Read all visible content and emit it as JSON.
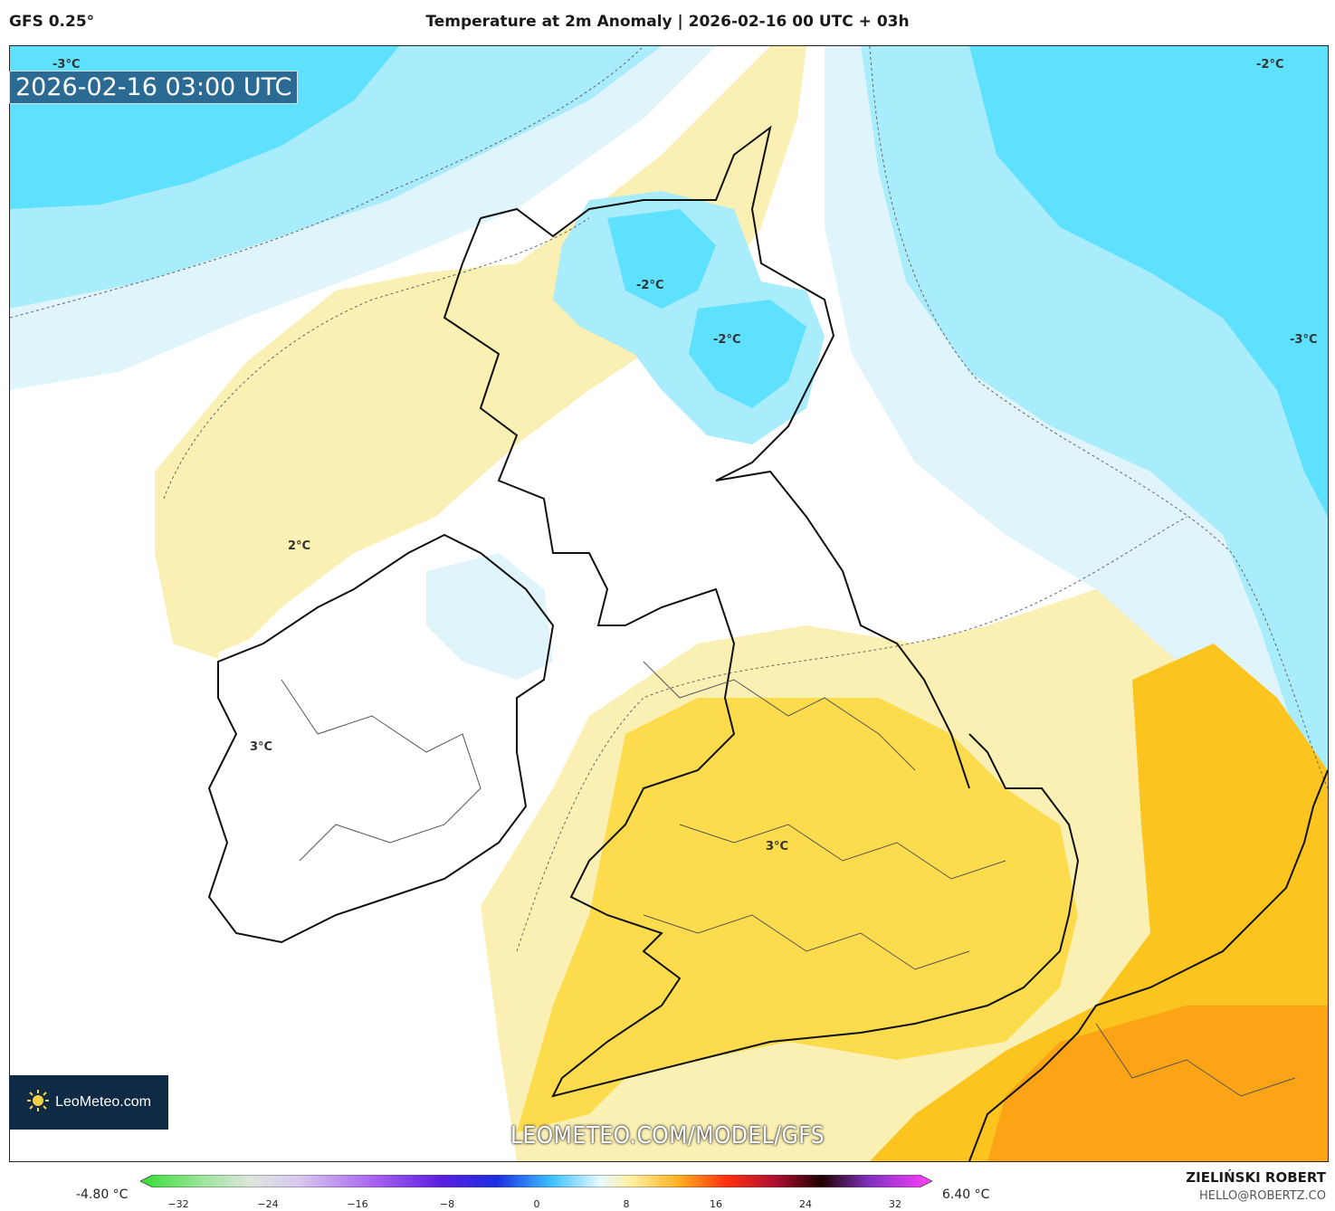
{
  "header": {
    "model": "GFS 0.25°",
    "title": "Temperature at 2m Anomaly | 2026-02-16 00 UTC + 03h"
  },
  "map": {
    "valid_time": "2026-02-16 03:00 UTC",
    "contour_labels": [
      "-3°C",
      "-2°C",
      "-2°C",
      "-2°C",
      "-3°C",
      "2°C",
      "3°C",
      "3°C"
    ],
    "colors": {
      "deep_cold": "#5ee0ff",
      "cold": "#a9ecfb",
      "cool": "#dff4fb",
      "neutral": "#ffffff",
      "warm_light": "#fbf0b4",
      "warm": "#fbe39a",
      "warm_mid": "#fcd83a",
      "warm_strong": "#fcc41f",
      "hot": "#fb9f14"
    }
  },
  "branding": {
    "logo": "LeoMeteo.com",
    "watermark": "LEOMETEO.COM/MODEL/GFS",
    "author": "ZIELIŃSKI ROBERT",
    "email": "HELLO@ROBERTZ.CO"
  },
  "colorbar": {
    "min_label": "-4.80 °C",
    "max_label": "6.40 °C",
    "ticks": [
      "−32",
      "−24",
      "−16",
      "−8",
      "0",
      "8",
      "16",
      "24",
      "32"
    ]
  }
}
